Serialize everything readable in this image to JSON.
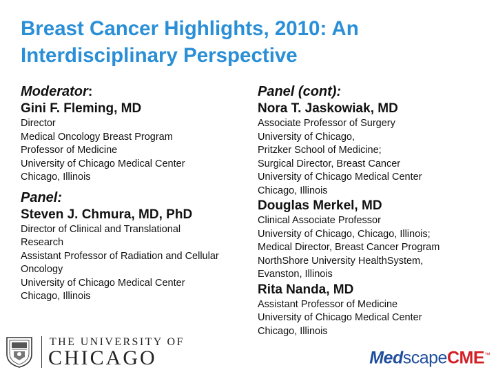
{
  "title": "Breast Cancer Highlights, 2010: An Interdisciplinary Perspective",
  "left": {
    "moderator_label": "Moderator",
    "moderator_colon": ":",
    "moderator": {
      "name": "Gini F. Fleming, MD",
      "lines": [
        "Director",
        "Medical Oncology Breast Program",
        "Professor of Medicine",
        "University of Chicago Medical Center",
        "Chicago, Illinois"
      ]
    },
    "panel_label": "Panel:",
    "panelist": {
      "name": "Steven J. Chmura, MD, PhD",
      "lines": [
        "Director of Clinical and Translational",
        "Research",
        "Assistant Professor of Radiation and Cellular",
        "Oncology",
        "University of Chicago Medical Center",
        "Chicago, Illinois"
      ]
    }
  },
  "right": {
    "panel_cont_label": "Panel (cont):",
    "panelists": [
      {
        "name": "Nora T. Jaskowiak, MD",
        "lines": [
          "Associate Professor of Surgery",
          "University of Chicago,",
          "Pritzker School of Medicine;",
          "Surgical Director, Breast Cancer",
          "University of Chicago Medical Center",
          "Chicago, Illinois"
        ]
      },
      {
        "name": "Douglas Merkel, MD",
        "lines": [
          "Clinical Associate Professor",
          "University of Chicago, Chicago, Illinois;",
          "Medical Director, Breast Cancer Program",
          "NorthShore University HealthSystem,",
          "Evanston, Illinois"
        ]
      },
      {
        "name": "Rita Nanda, MD",
        "lines": [
          "Assistant Professor of Medicine",
          "University of Chicago Medical Center",
          "Chicago, Illinois"
        ]
      }
    ]
  },
  "footer": {
    "university_line1": "THE UNIVERSITY OF",
    "university_line2": "CHICAGO",
    "medscape_med": "Med",
    "medscape_scape": "scape",
    "medscape_cme": "CME",
    "medscape_tm": "™",
    "seal_icon": "university-seal-icon"
  },
  "colors": {
    "title": "#2a8fd6",
    "medscape_blue": "#1f4e9c",
    "medscape_red": "#d21f26"
  }
}
